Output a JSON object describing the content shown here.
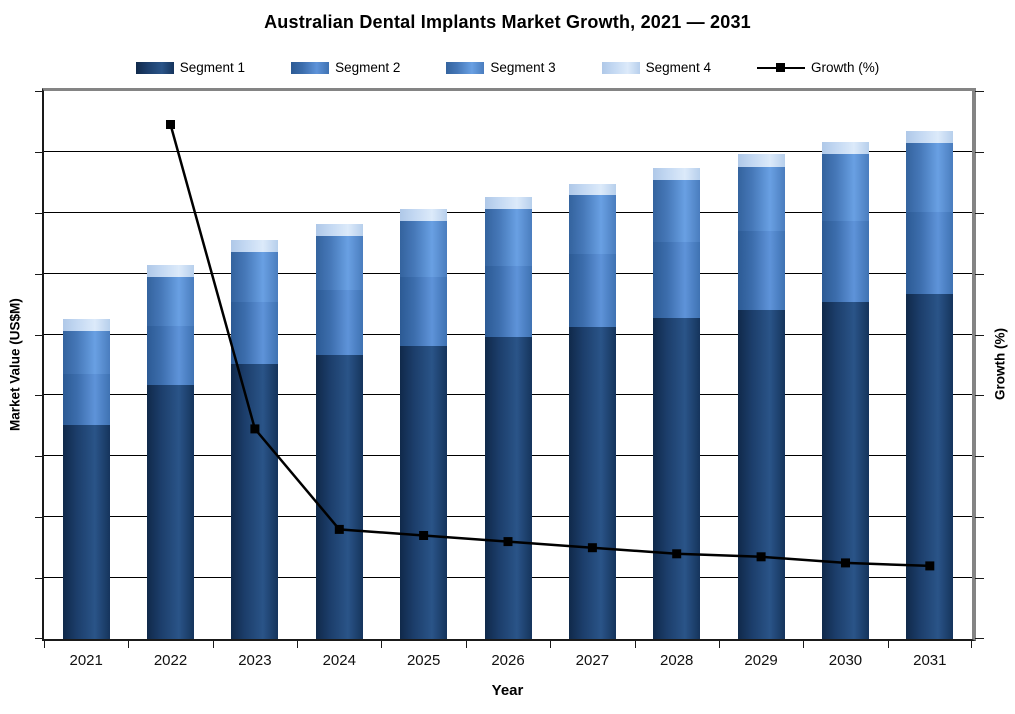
{
  "title": "Australian Dental Implants Market Growth, 2021 — 2031",
  "axes": {
    "x_label": "Year",
    "y_left_label": "Market Value (US$M)",
    "y_right_label": "Growth (%)"
  },
  "chart_data": {
    "type": "combo_stacked_bar_line",
    "title": "Australian Dental Implants Market Growth, 2021 — 2031",
    "categories": [
      "2021",
      "2022",
      "2023",
      "2024",
      "2025",
      "2026",
      "2027",
      "2028",
      "2029",
      "2030",
      "2031"
    ],
    "series": [
      {
        "name": "Segment 1",
        "values": [
          176,
          209,
          226,
          233,
          241,
          248,
          256,
          264,
          270,
          277,
          283
        ],
        "color": "#1C3E6B",
        "gradient": [
          "#10294A",
          "#1C3E6B",
          "#2A5488",
          "#15345C"
        ]
      },
      {
        "name": "Segment 2",
        "values": [
          42,
          48,
          51,
          54,
          56,
          58,
          60,
          62,
          65,
          66,
          68
        ],
        "color": "#3C6DAC",
        "gradient": [
          "#2C5A94",
          "#3C6DAC",
          "#5E93D9",
          "#3F72B2"
        ]
      },
      {
        "name": "Segment 3",
        "values": [
          35,
          40,
          41,
          44,
          46,
          47,
          49,
          51,
          53,
          55,
          56
        ],
        "color": "#4678B8",
        "gradient": [
          "#34639E",
          "#4678B8",
          "#69A0E3",
          "#4A7DBE"
        ]
      },
      {
        "name": "Segment 4",
        "values": [
          10,
          10,
          10,
          10,
          10,
          10,
          9,
          10,
          10,
          10,
          10
        ],
        "color": "#C3D8F2",
        "gradient": [
          "#AFC8E8",
          "#C3D8F2",
          "#DCEAFA",
          "#B7CFEC"
        ]
      }
    ],
    "line_series": {
      "name": "Growth (%)",
      "values": [
        null,
        16.9,
        6.9,
        3.6,
        3.4,
        3.2,
        3.0,
        2.8,
        2.7,
        2.5,
        2.4
      ],
      "color": "#000000",
      "marker": "square"
    },
    "xlabel": "Year",
    "ylabel": "Market Value (US$M)",
    "y2label": "Growth (%)",
    "ylim": [
      0,
      450
    ],
    "y2lim": [
      0,
      18
    ],
    "y_divisions": 9,
    "grid": true,
    "axis_tick_labels_visible": false,
    "legend_position": "top",
    "plot_border_color": "#848484",
    "gridline_color": "#000000",
    "background_color": "#FFFFFF"
  }
}
